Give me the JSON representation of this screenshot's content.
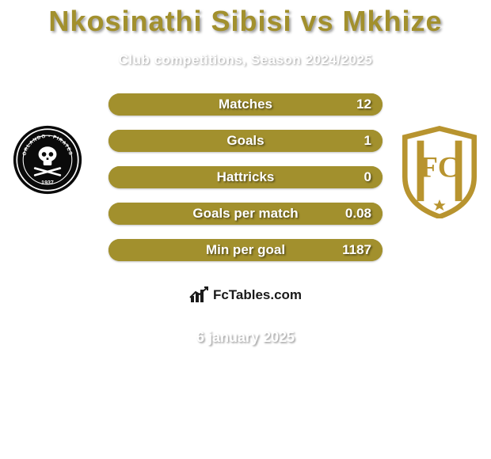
{
  "colors": {
    "background": "#ffffff",
    "title": "#a2902d",
    "subtitle": "#ffffff",
    "oval": "#ffffff",
    "row_bg": "#a2902d",
    "row_alt": "#8c7b1e",
    "row_text": "#ffffff",
    "row_text_fs": 17,
    "attrib_bg": "#ffffff",
    "attrib_text": "#1a1a1a",
    "date_text": "#ffffff",
    "badge_gold": "#b8942f",
    "badge_white": "#ffffff",
    "badge_black": "#0a0a0a"
  },
  "title": {
    "text": "Nkosinathi Sibisi vs Mkhize",
    "fontsize": 36
  },
  "subtitle": {
    "text": "Club competitions, Season 2024/2025",
    "fontsize": 17
  },
  "rows": [
    {
      "label": "Matches",
      "left": "",
      "right": "12",
      "left_pct": 0,
      "right_pct": 100
    },
    {
      "label": "Goals",
      "left": "",
      "right": "1",
      "left_pct": 0,
      "right_pct": 100
    },
    {
      "label": "Hattricks",
      "left": "",
      "right": "0",
      "left_pct": 0,
      "right_pct": 100
    },
    {
      "label": "Goals per match",
      "left": "",
      "right": "0.08",
      "left_pct": 0,
      "right_pct": 100
    },
    {
      "label": "Min per goal",
      "left": "",
      "right": "1187",
      "left_pct": 0,
      "right_pct": 100
    }
  ],
  "attribution": {
    "text": "FcTables.com",
    "fontsize": 17
  },
  "date": {
    "text": "6 january 2025",
    "fontsize": 18
  },
  "badges": {
    "left": {
      "name": "orlando-pirates-badge",
      "year": "1937"
    },
    "right": {
      "name": "cape-town-city-badge"
    }
  }
}
